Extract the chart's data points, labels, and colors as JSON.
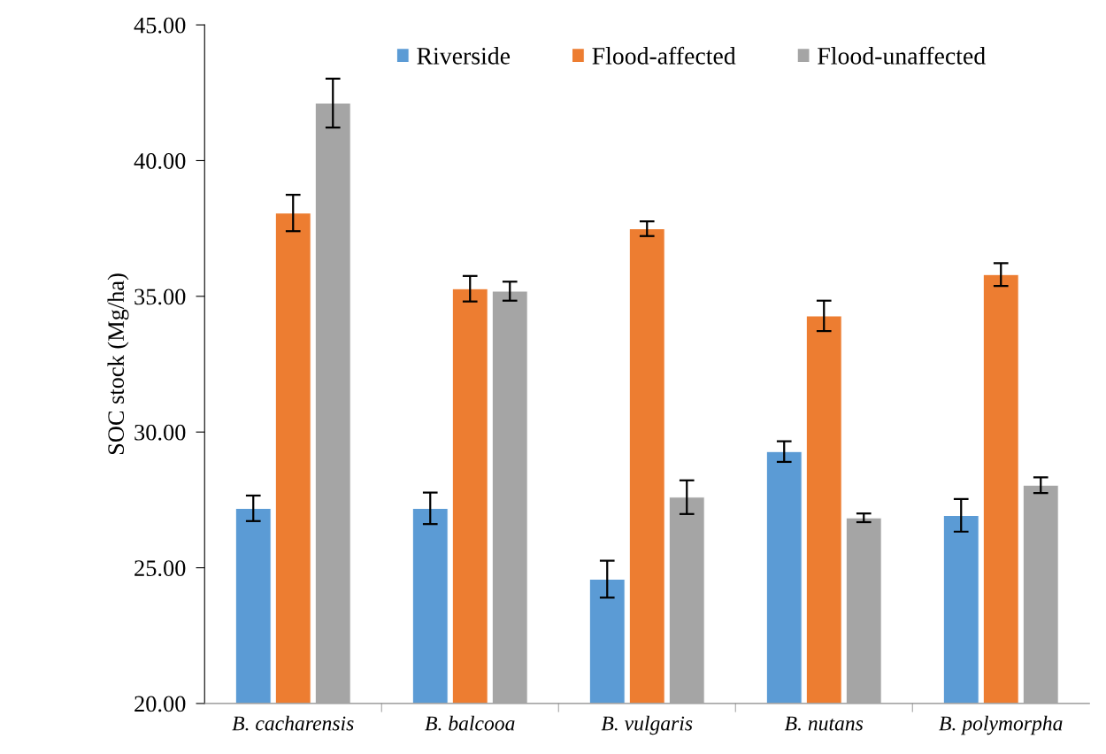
{
  "chart_data": {
    "type": "bar",
    "ylabel": "SOC stock (Mg/ha)",
    "categories": [
      "B. cacharensis",
      "B. balcooa",
      "B. vulgaris",
      "B. nutans",
      "B. polymorpha"
    ],
    "series": [
      {
        "name": "Riverside",
        "color": "#5b9bd5",
        "values": [
          27.19,
          27.19,
          24.58,
          29.28,
          26.93
        ],
        "errors": [
          0.47,
          0.58,
          0.68,
          0.38,
          0.6
        ]
      },
      {
        "name": "Flood-affected",
        "color": "#ed7d31",
        "values": [
          38.07,
          35.28,
          37.49,
          34.28,
          35.8
        ],
        "errors": [
          0.67,
          0.47,
          0.27,
          0.56,
          0.42
        ]
      },
      {
        "name": "Flood-unaffected",
        "color": "#a5a5a5",
        "values": [
          42.12,
          35.19,
          27.6,
          26.84,
          28.04
        ],
        "errors": [
          0.9,
          0.35,
          0.62,
          0.16,
          0.29
        ]
      }
    ],
    "ylim": [
      20,
      45
    ],
    "yticks": [
      {
        "value": 20,
        "label": "20.00"
      },
      {
        "value": 25,
        "label": "25.00"
      },
      {
        "value": 30,
        "label": "30.00"
      },
      {
        "value": 35,
        "label": "35.00"
      },
      {
        "value": 40,
        "label": "40.00"
      },
      {
        "value": 45,
        "label": "45.00"
      }
    ],
    "legend": "top",
    "grid": false
  }
}
